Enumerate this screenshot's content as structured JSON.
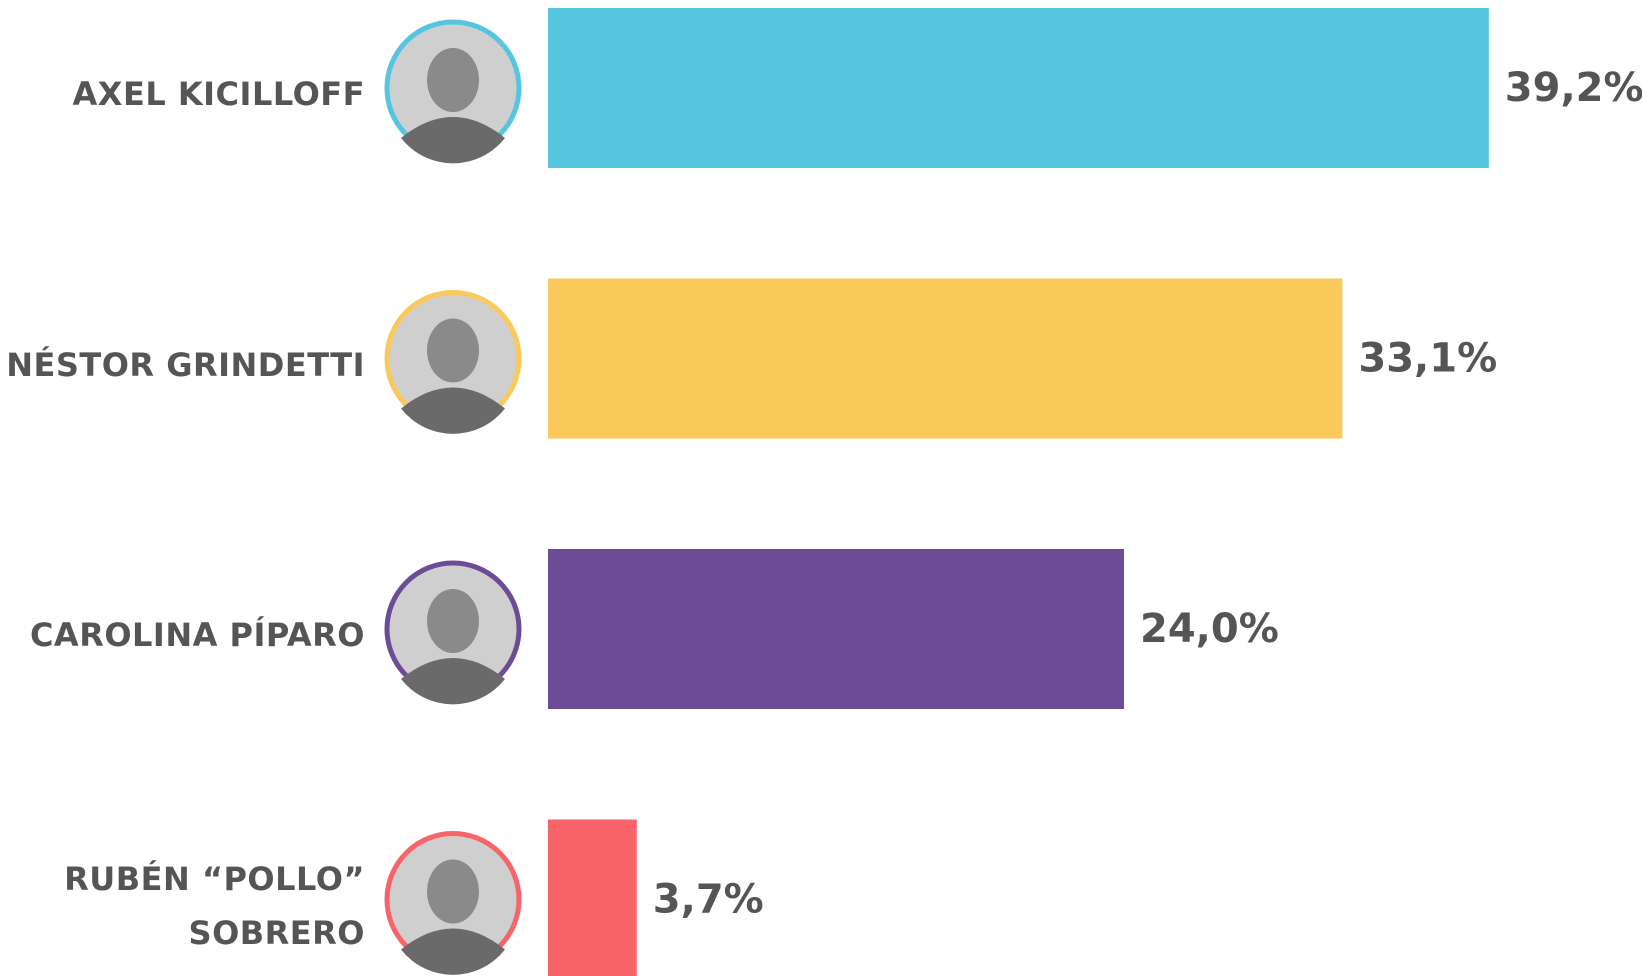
{
  "chart_data": {
    "type": "bar",
    "orientation": "horizontal",
    "categories": [
      "AXEL KICILLOFF",
      "NÉSTOR GRINDETTI",
      "CAROLINA PÍPARO",
      "RUBÉN “POLLO” SOBRERO"
    ],
    "series": [
      {
        "colors": [
          "#56c5e0",
          "#fbc95a",
          "#6c4c97",
          "#f9646b"
        ],
        "values": [
          39.2,
          33.1,
          24.0,
          3.7
        ],
        "value_labels": [
          "39,2%",
          "33,1%",
          "24,0%",
          "3,7%"
        ]
      }
    ]
  }
}
